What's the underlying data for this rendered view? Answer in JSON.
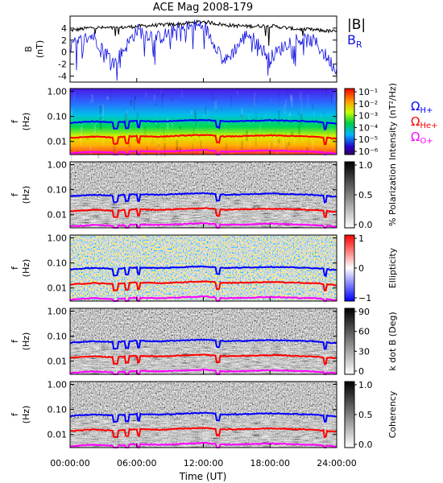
{
  "title": "ACE Mag 2008-179",
  "xlabel": "Time (UT)",
  "colors": {
    "b_total": "#000000",
    "b_r": "#1010e0",
    "omega_h": "#0000ff",
    "omega_he": "#ff0000",
    "omega_o": "#ff00ff"
  },
  "chart_data": [
    {
      "type": "line",
      "panel": "magnetic-field",
      "ylabel": "B (nT)",
      "ylim": [
        -5,
        6
      ],
      "yticks": [
        4,
        2,
        0,
        -2,
        -4
      ],
      "x": [
        "00:00:00",
        "02:00:00",
        "04:00:00",
        "06:00:00",
        "08:00:00",
        "10:00:00",
        "12:00:00",
        "14:00:00",
        "16:00:00",
        "18:00:00",
        "20:00:00",
        "22:00:00",
        "24:00:00"
      ],
      "series": [
        {
          "name": "|B|",
          "values": [
            3.6,
            4.1,
            4.0,
            4.3,
            4.5,
            4.7,
            5.1,
            4.5,
            4.3,
            4.4,
            3.9,
            3.7,
            3.4
          ]
        },
        {
          "name": "B_R",
          "values": [
            1.0,
            2.8,
            -1.8,
            3.6,
            2.4,
            4.0,
            4.5,
            -1.5,
            3.2,
            -1.0,
            2.2,
            1.8,
            -3.0
          ]
        }
      ]
    },
    {
      "type": "heatmap",
      "panel": "power-spectrum",
      "ylabel": "f (Hz)",
      "colorbar_label": "Intensity (nT²/Hz)",
      "colorbar_ticks": [
        "10⁻¹",
        "10⁻²",
        "10⁻³",
        "10⁻⁴",
        "10⁻⁵",
        "10⁻⁶"
      ],
      "legend": [
        "Ω",
        "H+",
        "Ω",
        "He+",
        "Ω",
        "O+"
      ]
    },
    {
      "type": "heatmap",
      "panel": "polarization",
      "ylabel": "f (Hz)",
      "colorbar_label": "% Polarization",
      "colorbar_ticks": [
        "1.0",
        "0.5",
        "0.0"
      ]
    },
    {
      "type": "heatmap",
      "panel": "ellipticity",
      "ylabel": "f (Hz)",
      "colorbar_label": "Ellipticity",
      "colorbar_ticks": [
        "1",
        "0",
        "−1"
      ]
    },
    {
      "type": "heatmap",
      "panel": "k-dot-b",
      "ylabel": "f (Hz)",
      "colorbar_label": "k dot B (Deg)",
      "colorbar_ticks": [
        "90",
        "60",
        "30",
        "0"
      ]
    },
    {
      "type": "heatmap",
      "panel": "coherency",
      "ylabel": "f (Hz)",
      "colorbar_label": "Coherency",
      "colorbar_ticks": [
        "1.0",
        "0.5",
        "0.0"
      ]
    }
  ],
  "freq_axis": {
    "ylim": [
      0.003,
      1.3
    ],
    "tick_labels": [
      "1.00",
      "0.10",
      "0.01"
    ],
    "tick_values": [
      1.0,
      0.1,
      0.01
    ]
  },
  "gyro_frequencies": {
    "H+": [
      0.055,
      0.063,
      0.058,
      0.066,
      0.062,
      0.068,
      0.073,
      0.063,
      0.066,
      0.07,
      0.066,
      0.062,
      0.052
    ],
    "He+": [
      0.0137,
      0.0157,
      0.0145,
      0.0165,
      0.0155,
      0.017,
      0.0182,
      0.0158,
      0.0165,
      0.0175,
      0.0165,
      0.0155,
      0.013
    ],
    "O+": [
      0.0034,
      0.0039,
      0.0036,
      0.0041,
      0.0039,
      0.0042,
      0.0046,
      0.0039,
      0.0041,
      0.0044,
      0.0041,
      0.0039,
      0.0033
    ]
  }
}
